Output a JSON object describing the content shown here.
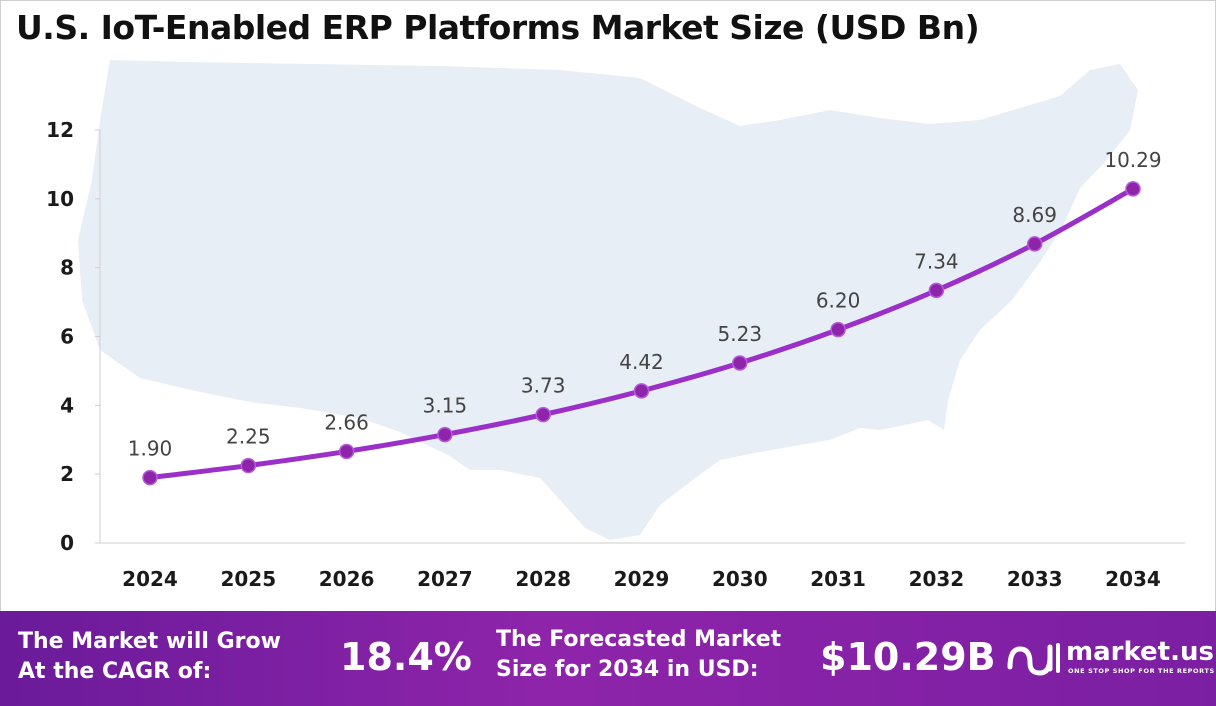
{
  "title": "U.S. IoT-Enabled ERP Platforms Market Size (USD Bn)",
  "chart_data": {
    "type": "line",
    "title": "U.S. IoT-Enabled ERP Platforms Market Size (USD Bn)",
    "categories": [
      "2024",
      "2025",
      "2026",
      "2027",
      "2028",
      "2029",
      "2030",
      "2031",
      "2032",
      "2033",
      "2034"
    ],
    "series": [
      {
        "values": [
          1.9,
          2.25,
          2.66,
          3.15,
          3.73,
          4.42,
          5.23,
          6.2,
          7.34,
          8.69,
          10.29
        ]
      }
    ],
    "value_labels": [
      "1.90",
      "2.25",
      "2.66",
      "3.15",
      "3.73",
      "4.42",
      "5.23",
      "6.20",
      "7.34",
      "8.69",
      "10.29"
    ],
    "y_ticks": [
      "0",
      "2",
      "4",
      "6",
      "8",
      "10",
      "12"
    ],
    "ylim": [
      0,
      12
    ],
    "grid": false,
    "legend": "none",
    "line_color": "#9b30c9",
    "marker_color": "#8e24aa",
    "background_map_color": "#e8eef6"
  },
  "footer": {
    "cagr_label_line1": "The Market will Grow",
    "cagr_label_line2": "At the CAGR of:",
    "cagr_value": "18.4%",
    "forecast_label_line1": "The Forecasted Market",
    "forecast_label_line2": "Size for 2034 in USD:",
    "forecast_value": "$10.29B",
    "brand_name": "market.us",
    "brand_tagline": "ONE STOP SHOP FOR THE REPORTS",
    "background_color": "#7b1fa2"
  }
}
